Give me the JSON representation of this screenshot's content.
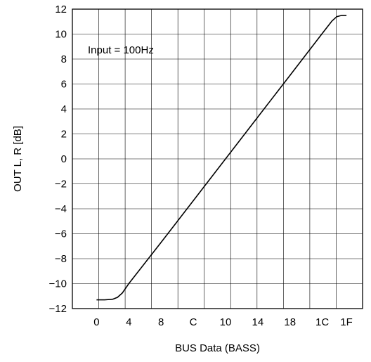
{
  "chart_data": {
    "type": "line",
    "title": "",
    "xlabel": "BUS Data (BASS)",
    "ylabel": "OUT L, R [dB]",
    "annotation": "Input = 100Hz",
    "x_tick_labels": [
      "0",
      "4",
      "8",
      "C",
      "10",
      "14",
      "18",
      "1C",
      "1F"
    ],
    "x_tick_values": [
      0,
      4,
      8,
      12,
      16,
      20,
      24,
      28,
      31
    ],
    "xlim": [
      -3,
      33
    ],
    "ylim": [
      -12,
      12
    ],
    "y_tick_values": [
      -12,
      -10,
      -8,
      -6,
      -4,
      -2,
      0,
      2,
      4,
      6,
      8,
      10,
      12
    ],
    "y_tick_labels": [
      "−12",
      "−10",
      "−8",
      "−6",
      "−4",
      "−2",
      "0",
      "2",
      "4",
      "6",
      "8",
      "10",
      "12"
    ],
    "grid": true,
    "series": [
      {
        "x": [
          0,
          1,
          2,
          2.6,
          3.2,
          4,
          8,
          12,
          16,
          20,
          24,
          28,
          29.2,
          29.8,
          30.4,
          31
        ],
        "y": [
          -11.3,
          -11.3,
          -11.25,
          -11.1,
          -10.75,
          -10.0,
          -6.7,
          -3.35,
          0.0,
          3.35,
          6.7,
          10.05,
          11.05,
          11.4,
          11.5,
          11.5
        ]
      }
    ]
  }
}
